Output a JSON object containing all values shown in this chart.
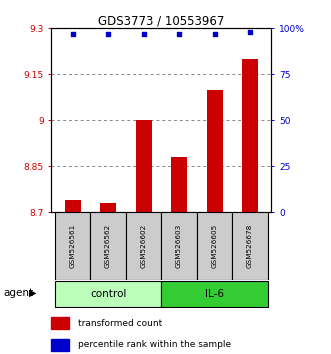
{
  "title": "GDS3773 / 10553967",
  "samples": [
    "GSM526561",
    "GSM526562",
    "GSM526602",
    "GSM526603",
    "GSM526605",
    "GSM526678"
  ],
  "bar_values": [
    8.74,
    8.73,
    9.0,
    8.88,
    9.1,
    9.2
  ],
  "percentile_values": [
    97,
    97,
    97,
    97,
    97,
    98
  ],
  "groups": [
    {
      "label": "control",
      "color": "#bbffbb",
      "indices": [
        0,
        1,
        2
      ]
    },
    {
      "label": "IL-6",
      "color": "#33dd33",
      "indices": [
        3,
        4,
        5
      ]
    }
  ],
  "ylim_left": [
    8.7,
    9.3
  ],
  "ylim_right": [
    0,
    100
  ],
  "yticks_left": [
    8.7,
    8.85,
    9.0,
    9.15,
    9.3
  ],
  "ytick_labels_left": [
    "8.7",
    "8.85",
    "9",
    "9.15",
    "9.3"
  ],
  "yticks_right": [
    0,
    25,
    50,
    75,
    100
  ],
  "ytick_labels_right": [
    "0",
    "25",
    "50",
    "75",
    "100%"
  ],
  "bar_color": "#cc0000",
  "dot_color": "#0000cc",
  "legend_bar_label": "transformed count",
  "legend_dot_label": "percentile rank within the sample",
  "grid_yticks": [
    8.85,
    9.0,
    9.15
  ],
  "grid_color": "#888888",
  "sample_box_color": "#cccccc",
  "ctrl_box_color": "#bbffbb",
  "il6_box_color": "#33cc33"
}
